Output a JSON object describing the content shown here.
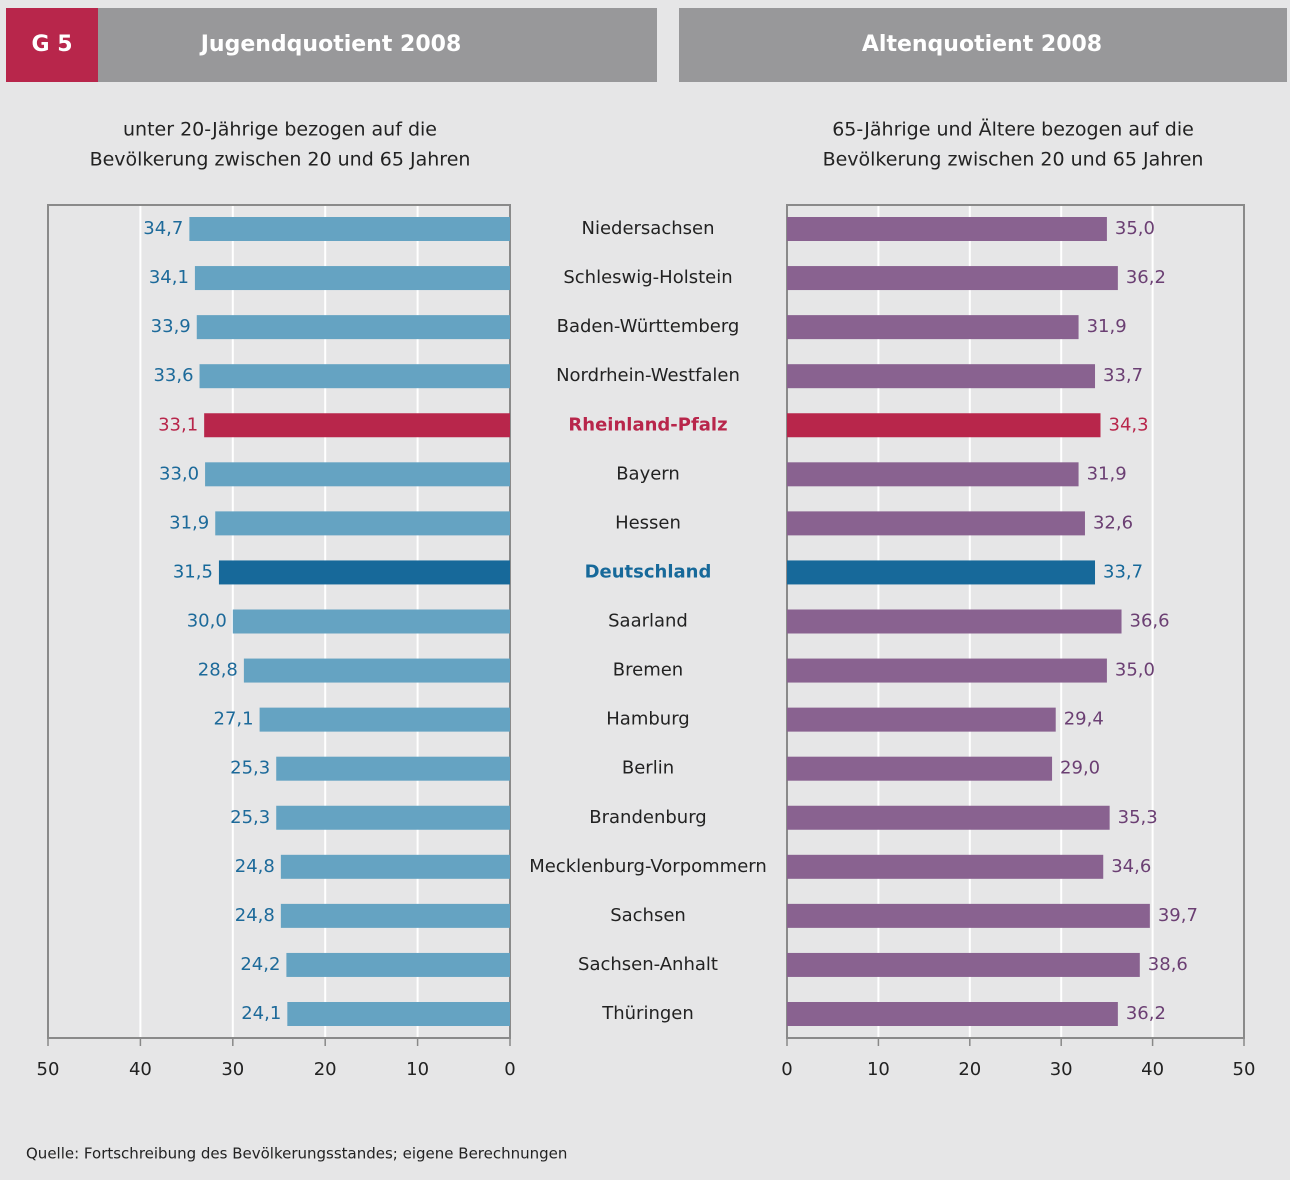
{
  "label": "G 5",
  "source": "Quelle: Fortschreibung des Bevölkerungsstandes; eigene Berechnungen",
  "chart_data": [
    {
      "type": "bar",
      "orientation": "horizontal",
      "title": "Jugendquotient 2008",
      "subtitle": [
        "unter 20-Jährige bezogen auf die",
        "Bevölkerung zwischen 20 und 65 Jahren"
      ],
      "categories": [
        "Niedersachsen",
        "Schleswig-Holstein",
        "Baden-Württemberg",
        "Nordrhein-Westfalen",
        "Rheinland-Pfalz",
        "Bayern",
        "Hessen",
        "Deutschland",
        "Saarland",
        "Bremen",
        "Hamburg",
        "Berlin",
        "Brandenburg",
        "Mecklenburg-Vorpommern",
        "Sachsen",
        "Sachsen-Anhalt",
        "Thüringen"
      ],
      "values": [
        34.7,
        34.1,
        33.9,
        33.6,
        33.1,
        33.0,
        31.9,
        31.5,
        30.0,
        28.8,
        27.1,
        25.3,
        25.3,
        24.8,
        24.8,
        24.2,
        24.1
      ],
      "value_labels": [
        "34,7",
        "34,1",
        "33,9",
        "33,6",
        "33,1",
        "33,0",
        "31,9",
        "31,5",
        "30,0",
        "28,8",
        "27,1",
        "25,3",
        "25,3",
        "24,8",
        "24,8",
        "24,2",
        "24,1"
      ],
      "color": "#65a3c2",
      "label_color": "#1d6a9a",
      "colors": [
        "#65a3c2",
        "#65a3c2",
        "#65a3c2",
        "#65a3c2",
        "#b8264b",
        "#65a3c2",
        "#65a3c2",
        "#17699a",
        "#65a3c2",
        "#65a3c2",
        "#65a3c2",
        "#65a3c2",
        "#65a3c2",
        "#65a3c2",
        "#65a3c2",
        "#65a3c2",
        "#65a3c2"
      ],
      "xlim": [
        50,
        0
      ],
      "xticks": [
        50,
        40,
        30,
        20,
        10,
        0
      ],
      "grid": true
    },
    {
      "type": "bar",
      "orientation": "horizontal",
      "title": "Altenquotient 2008",
      "subtitle": [
        "65-Jährige und Ältere bezogen auf die",
        "Bevölkerung zwischen 20 und 65 Jahren"
      ],
      "values": [
        35.0,
        36.2,
        31.9,
        33.7,
        34.3,
        31.9,
        32.6,
        33.7,
        36.6,
        35.0,
        29.4,
        29.0,
        35.3,
        34.6,
        39.7,
        38.6,
        36.2
      ],
      "value_labels": [
        "35,0",
        "36,2",
        "31,9",
        "33,7",
        "34,3",
        "31,9",
        "32,6",
        "33,7",
        "36,6",
        "35,0",
        "29,4",
        "29,0",
        "35,3",
        "34,6",
        "39,7",
        "38,6",
        "36,2"
      ],
      "color": "#896290",
      "label_color": "#6b3f73",
      "colors": [
        "#896290",
        "#896290",
        "#896290",
        "#896290",
        "#b8264b",
        "#896290",
        "#896290",
        "#17699a",
        "#896290",
        "#896290",
        "#896290",
        "#896290",
        "#896290",
        "#896290",
        "#896290",
        "#896290",
        "#896290"
      ],
      "xlim": [
        0,
        50
      ],
      "xticks": [
        0,
        10,
        20,
        30,
        40,
        50
      ],
      "grid": true
    }
  ]
}
